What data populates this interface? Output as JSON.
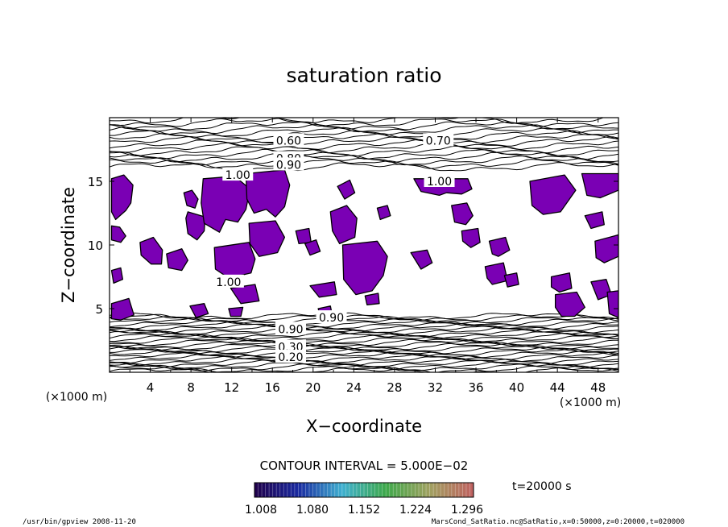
{
  "chart_data": {
    "type": "contour",
    "title": "saturation ratio",
    "xlabel": "X−coordinate",
    "ylabel": "Z−coordinate",
    "x_unit": "(×1000 m)",
    "y_unit": "(×1000 m)",
    "xlim": [
      0,
      50
    ],
    "ylim": [
      0,
      20
    ],
    "x_ticks": [
      "4",
      "8",
      "12",
      "16",
      "20",
      "24",
      "28",
      "32",
      "36",
      "40",
      "44",
      "48"
    ],
    "y_ticks": [
      "5",
      "10",
      "15"
    ],
    "contour_interval_label": "CONTOUR INTERVAL = 5.000E−02",
    "contour_labels": [
      {
        "text": "0.60",
        "x": 17.6,
        "z": 18.2
      },
      {
        "text": "0.70",
        "x": 32.3,
        "z": 18.2
      },
      {
        "text": "0.80",
        "x": 17.6,
        "z": 16.8
      },
      {
        "text": "0.90",
        "x": 17.6,
        "z": 16.3
      },
      {
        "text": "1.00",
        "x": 12.6,
        "z": 15.5
      },
      {
        "text": "1.00",
        "x": 32.4,
        "z": 15.0
      },
      {
        "text": "1.00",
        "x": 11.7,
        "z": 7.1
      },
      {
        "text": "0.90",
        "x": 21.8,
        "z": 4.3
      },
      {
        "text": "0.90",
        "x": 17.8,
        "z": 3.4
      },
      {
        "text": "0.30",
        "x": 17.8,
        "z": 2.0
      },
      {
        "text": "0.20",
        "x": 17.8,
        "z": 1.2
      }
    ],
    "shading": {
      "colorbar_ticks": [
        "1.008",
        "1.080",
        "1.152",
        "1.224",
        "1.296"
      ],
      "color_min": "#20004a",
      "color_max": "#c06060",
      "fill_color": "#7a00b4"
    },
    "supersaturated_regions": [
      [
        [
          0.2,
          15.2
        ],
        [
          1.4,
          15.5
        ],
        [
          2.3,
          14.7
        ],
        [
          2.1,
          13.3
        ],
        [
          1.6,
          12.7
        ],
        [
          0.6,
          12.0
        ],
        [
          0.2,
          12.6
        ]
      ],
      [
        [
          0.2,
          11.5
        ],
        [
          1.0,
          11.4
        ],
        [
          1.6,
          10.7
        ],
        [
          1.1,
          10.2
        ],
        [
          0.2,
          10.4
        ]
      ],
      [
        [
          7.3,
          14.1
        ],
        [
          8.1,
          14.3
        ],
        [
          8.7,
          13.6
        ],
        [
          8.4,
          12.9
        ],
        [
          7.6,
          13.1
        ]
      ],
      [
        [
          7.7,
          12.6
        ],
        [
          9.4,
          12.2
        ],
        [
          9.3,
          11.1
        ],
        [
          8.6,
          10.4
        ],
        [
          7.7,
          10.9
        ],
        [
          7.5,
          12.1
        ]
      ],
      [
        [
          3.0,
          10.2
        ],
        [
          4.3,
          10.6
        ],
        [
          5.2,
          9.6
        ],
        [
          5.1,
          8.5
        ],
        [
          4.1,
          8.5
        ],
        [
          3.1,
          9.2
        ]
      ],
      [
        [
          5.6,
          9.3
        ],
        [
          7.1,
          9.7
        ],
        [
          7.7,
          8.8
        ],
        [
          7.1,
          8.0
        ],
        [
          5.8,
          8.2
        ]
      ],
      [
        [
          9.2,
          15.2
        ],
        [
          12.3,
          15.4
        ],
        [
          13.8,
          14.4
        ],
        [
          13.4,
          12.8
        ],
        [
          12.6,
          11.8
        ],
        [
          11.4,
          12.0
        ],
        [
          10.8,
          11.0
        ],
        [
          9.3,
          11.7
        ],
        [
          9.0,
          13.3
        ]
      ],
      [
        [
          13.4,
          15.6
        ],
        [
          17.2,
          15.9
        ],
        [
          17.7,
          14.7
        ],
        [
          17.2,
          13.0
        ],
        [
          16.3,
          12.2
        ],
        [
          15.4,
          12.8
        ],
        [
          14.2,
          12.5
        ],
        [
          13.5,
          13.6
        ]
      ],
      [
        [
          10.3,
          9.8
        ],
        [
          13.7,
          10.2
        ],
        [
          14.3,
          8.9
        ],
        [
          13.9,
          7.8
        ],
        [
          11.7,
          7.4
        ],
        [
          10.4,
          8.1
        ]
      ],
      [
        [
          13.7,
          11.7
        ],
        [
          16.3,
          11.9
        ],
        [
          17.2,
          10.6
        ],
        [
          16.5,
          9.4
        ],
        [
          14.7,
          9.1
        ],
        [
          13.8,
          10.1
        ]
      ],
      [
        [
          7.9,
          5.2
        ],
        [
          9.3,
          5.4
        ],
        [
          9.7,
          4.6
        ],
        [
          8.5,
          4.3
        ]
      ],
      [
        [
          11.9,
          6.6
        ],
        [
          14.3,
          6.9
        ],
        [
          14.7,
          5.6
        ],
        [
          12.9,
          5.4
        ]
      ],
      [
        [
          11.7,
          5.0
        ],
        [
          13.1,
          5.1
        ],
        [
          12.9,
          4.4
        ],
        [
          11.9,
          4.4
        ]
      ],
      [
        [
          18.3,
          11.1
        ],
        [
          19.6,
          11.3
        ],
        [
          19.8,
          10.2
        ],
        [
          18.6,
          10.1
        ]
      ],
      [
        [
          19.2,
          10.1
        ],
        [
          20.3,
          10.4
        ],
        [
          20.7,
          9.5
        ],
        [
          19.7,
          9.2
        ]
      ],
      [
        [
          21.7,
          12.6
        ],
        [
          23.3,
          13.1
        ],
        [
          24.3,
          12.1
        ],
        [
          24.1,
          10.6
        ],
        [
          22.6,
          10.1
        ],
        [
          21.9,
          11.1
        ]
      ],
      [
        [
          22.4,
          14.6
        ],
        [
          23.6,
          15.1
        ],
        [
          24.1,
          14.1
        ],
        [
          23.1,
          13.6
        ]
      ],
      [
        [
          22.9,
          10.0
        ],
        [
          26.3,
          10.3
        ],
        [
          27.3,
          9.1
        ],
        [
          26.9,
          7.6
        ],
        [
          25.8,
          6.4
        ],
        [
          24.2,
          6.1
        ],
        [
          23.0,
          7.3
        ]
      ],
      [
        [
          25.1,
          6.0
        ],
        [
          26.4,
          6.2
        ],
        [
          26.5,
          5.4
        ],
        [
          25.3,
          5.3
        ]
      ],
      [
        [
          19.7,
          6.8
        ],
        [
          22.1,
          7.1
        ],
        [
          22.3,
          6.1
        ],
        [
          20.6,
          5.9
        ]
      ],
      [
        [
          20.5,
          5.0
        ],
        [
          21.7,
          5.2
        ],
        [
          21.9,
          4.4
        ],
        [
          20.7,
          4.5
        ]
      ],
      [
        [
          29.9,
          15.2
        ],
        [
          35.2,
          15.2
        ],
        [
          35.6,
          14.4
        ],
        [
          34.6,
          14.0
        ],
        [
          33.1,
          14.1
        ],
        [
          32.4,
          13.9
        ],
        [
          30.6,
          14.2
        ]
      ],
      [
        [
          33.6,
          13.1
        ],
        [
          35.1,
          13.3
        ],
        [
          35.7,
          12.3
        ],
        [
          35.0,
          11.6
        ],
        [
          33.9,
          11.8
        ]
      ],
      [
        [
          34.6,
          11.1
        ],
        [
          36.2,
          11.3
        ],
        [
          36.4,
          10.2
        ],
        [
          35.5,
          9.8
        ],
        [
          34.7,
          10.3
        ]
      ],
      [
        [
          29.6,
          9.4
        ],
        [
          31.2,
          9.6
        ],
        [
          31.7,
          8.6
        ],
        [
          30.6,
          8.1
        ]
      ],
      [
        [
          37.3,
          10.3
        ],
        [
          38.9,
          10.6
        ],
        [
          39.3,
          9.6
        ],
        [
          38.2,
          9.1
        ],
        [
          37.6,
          9.3
        ]
      ],
      [
        [
          36.9,
          8.3
        ],
        [
          38.7,
          8.6
        ],
        [
          39.1,
          7.2
        ],
        [
          37.6,
          6.9
        ],
        [
          37.1,
          7.4
        ]
      ],
      [
        [
          38.8,
          7.6
        ],
        [
          40.0,
          7.8
        ],
        [
          40.2,
          6.9
        ],
        [
          39.1,
          6.7
        ]
      ],
      [
        [
          41.3,
          15.0
        ],
        [
          44.7,
          15.5
        ],
        [
          45.8,
          14.3
        ],
        [
          44.3,
          12.6
        ],
        [
          42.6,
          12.4
        ],
        [
          41.5,
          13.1
        ]
      ],
      [
        [
          46.4,
          15.6
        ],
        [
          50.0,
          15.6
        ],
        [
          50.0,
          14.3
        ],
        [
          48.2,
          13.7
        ],
        [
          46.9,
          13.9
        ]
      ],
      [
        [
          46.7,
          12.3
        ],
        [
          48.4,
          12.6
        ],
        [
          48.6,
          11.6
        ],
        [
          47.3,
          11.3
        ]
      ],
      [
        [
          47.7,
          10.3
        ],
        [
          50.0,
          10.8
        ],
        [
          50.0,
          9.1
        ],
        [
          48.6,
          8.6
        ],
        [
          47.8,
          9.0
        ]
      ],
      [
        [
          47.3,
          7.1
        ],
        [
          48.8,
          7.3
        ],
        [
          49.3,
          6.1
        ],
        [
          48.0,
          5.7
        ]
      ],
      [
        [
          43.4,
          7.5
        ],
        [
          45.2,
          7.8
        ],
        [
          45.4,
          6.6
        ],
        [
          44.2,
          6.3
        ],
        [
          43.4,
          6.7
        ]
      ],
      [
        [
          43.8,
          6.1
        ],
        [
          45.9,
          6.3
        ],
        [
          46.7,
          5.1
        ],
        [
          45.7,
          4.4
        ],
        [
          44.4,
          4.4
        ],
        [
          43.8,
          5.1
        ]
      ],
      [
        [
          48.9,
          6.3
        ],
        [
          50.0,
          6.4
        ],
        [
          50.0,
          4.3
        ],
        [
          49.1,
          4.6
        ]
      ],
      [
        [
          0.2,
          5.4
        ],
        [
          1.9,
          5.8
        ],
        [
          2.4,
          4.5
        ],
        [
          1.1,
          4.1
        ],
        [
          0.2,
          4.2
        ]
      ],
      [
        [
          0.2,
          8.0
        ],
        [
          1.1,
          8.2
        ],
        [
          1.3,
          7.3
        ],
        [
          0.4,
          7.0
        ]
      ],
      [
        [
          26.3,
          12.9
        ],
        [
          27.3,
          13.1
        ],
        [
          27.6,
          12.3
        ],
        [
          26.6,
          12.0
        ]
      ]
    ],
    "contour_band_bottom": {
      "z_min": 0.0,
      "z_max": 4.5,
      "line_count": 30
    },
    "contour_band_top": {
      "z_min": 16.0,
      "z_max": 20.0,
      "line_count": 16
    }
  },
  "colorbar_label": "t=20000 s",
  "footer": {
    "left": "/usr/bin/gpview  2008-11-20",
    "right": "MarsCond_SatRatio.nc@SatRatio,x=0:50000,z=0:20000,t=020000"
  }
}
